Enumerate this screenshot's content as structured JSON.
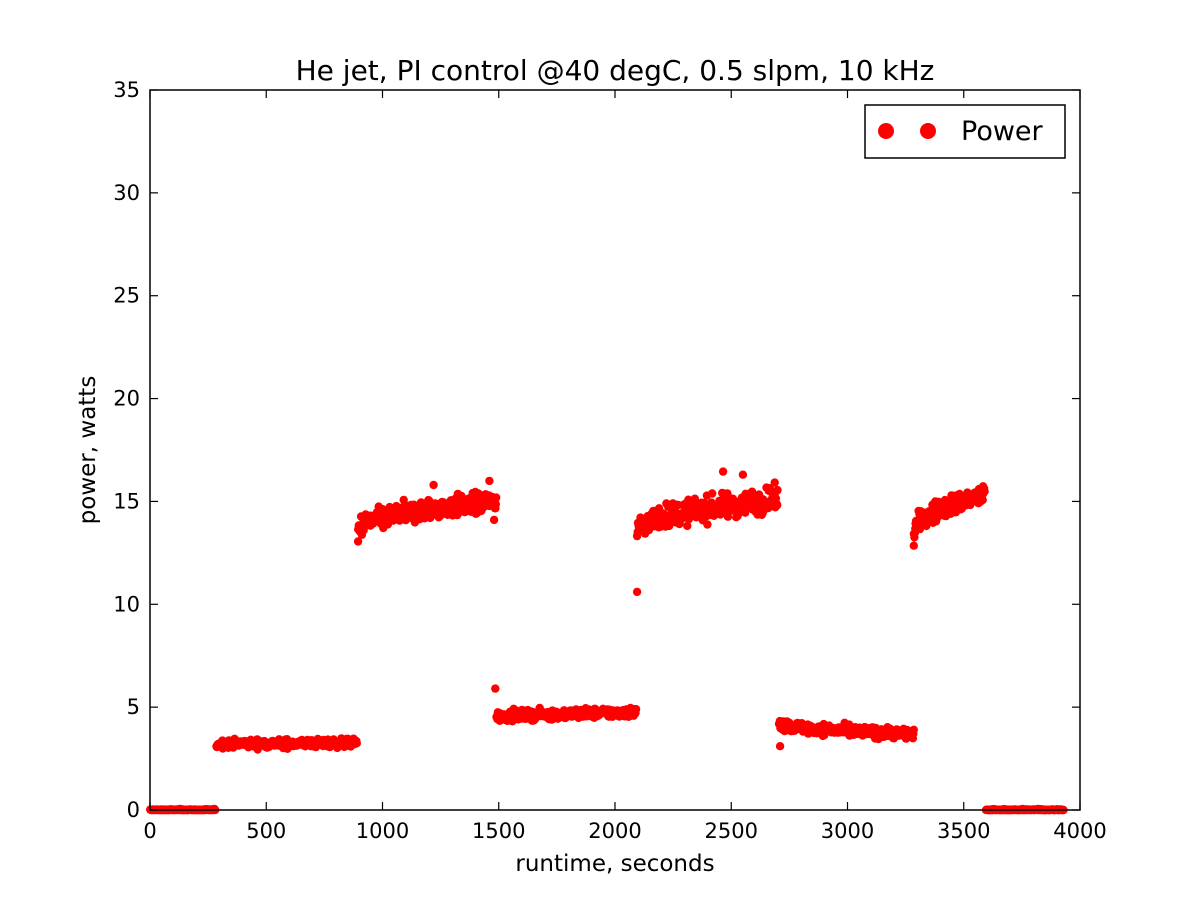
{
  "chart_data": {
    "type": "scatter",
    "title": "He jet, PI control @40 degC, 0.5 slpm, 10 kHz",
    "xlabel": "runtime, seconds",
    "ylabel": "power, watts",
    "xlim": [
      0,
      4000
    ],
    "ylim": [
      0,
      35
    ],
    "x_ticks": [
      "0",
      "500",
      "1000",
      "1500",
      "2000",
      "2500",
      "3000",
      "3500",
      "4000"
    ],
    "y_ticks": [
      "0",
      "5",
      "10",
      "15",
      "20",
      "25",
      "30",
      "35"
    ],
    "grid": false,
    "legend_placement": "top-right",
    "series": [
      {
        "name": "Power",
        "color": "#ff0000",
        "marker": "circle",
        "segments": [
          {
            "x_start": 0,
            "x_end": 280,
            "y_start": 0.0,
            "y_end": 0.0,
            "noise": 0.03
          },
          {
            "x_start": 285,
            "x_end": 890,
            "y_start": 3.2,
            "y_end": 3.25,
            "noise": 0.14
          },
          {
            "x_start": 895,
            "x_end": 1490,
            "y_start": 13.6,
            "y_end": 15.0,
            "noise": 0.35
          },
          {
            "x_start": 1490,
            "x_end": 2090,
            "y_start": 4.5,
            "y_end": 4.75,
            "noise": 0.16
          },
          {
            "x_start": 2095,
            "x_end": 2700,
            "y_start": 13.6,
            "y_end": 15.1,
            "noise": 0.4
          },
          {
            "x_start": 2705,
            "x_end": 3285,
            "y_start": 4.2,
            "y_end": 3.7,
            "noise": 0.18
          },
          {
            "x_start": 3285,
            "x_end": 3590,
            "y_start": 13.5,
            "y_end": 15.3,
            "noise": 0.35
          },
          {
            "x_start": 3595,
            "x_end": 3930,
            "y_start": 0.0,
            "y_end": 0.0,
            "noise": 0.03
          }
        ],
        "outliers": [
          {
            "x": 2095,
            "y": 10.6
          },
          {
            "x": 1485,
            "y": 5.9
          },
          {
            "x": 1480,
            "y": 14.1
          },
          {
            "x": 895,
            "y": 13.05
          },
          {
            "x": 2465,
            "y": 16.45
          },
          {
            "x": 2550,
            "y": 16.3
          },
          {
            "x": 1460,
            "y": 16.0
          },
          {
            "x": 2710,
            "y": 3.1
          },
          {
            "x": 3285,
            "y": 12.85
          },
          {
            "x": 1220,
            "y": 15.8
          }
        ]
      }
    ]
  }
}
